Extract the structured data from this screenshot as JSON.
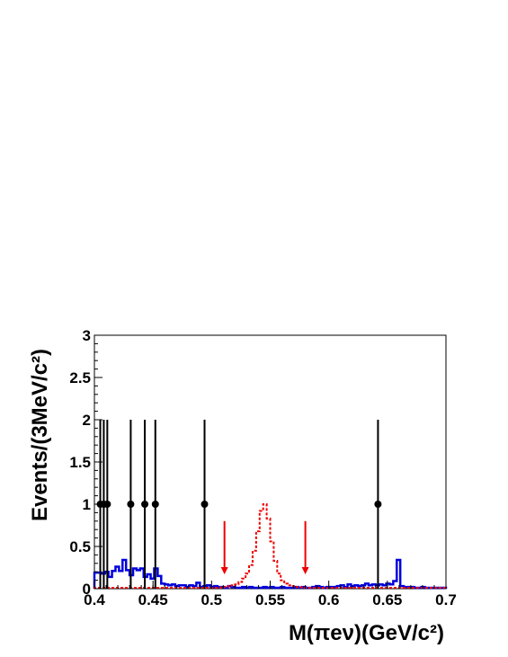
{
  "chart_data": {
    "type": "scatter",
    "title": "",
    "xlabel": "M(πeν)(GeV/c²)",
    "ylabel": "Events/(3MeV/c²)",
    "xlim": [
      0.4,
      0.7
    ],
    "ylim": [
      0,
      3
    ],
    "x_ticks": [
      "0.4",
      "0.45",
      "0.5",
      "0.55",
      "0.6",
      "0.65",
      "0.7"
    ],
    "y_ticks": [
      "0",
      "0.5",
      "1",
      "1.5",
      "2",
      "2.5",
      "3"
    ],
    "grid": false,
    "legend": "none",
    "series": [
      {
        "kind": "data-points",
        "color": "#000000",
        "x": [
          0.405,
          0.408,
          0.411,
          0.431,
          0.443,
          0.452,
          0.494,
          0.642
        ],
        "y": [
          1,
          1,
          1,
          1,
          1,
          1,
          1,
          1
        ],
        "err_low": [
          1,
          1,
          1,
          1,
          1,
          1,
          1,
          1
        ],
        "err_high": [
          1,
          1,
          1,
          1,
          1,
          1,
          1,
          1
        ]
      },
      {
        "kind": "histogram",
        "style": "solid",
        "color": "#0000dd",
        "bin_edges": [
          0.4,
          0.403,
          0.406,
          0.409,
          0.412,
          0.415,
          0.418,
          0.421,
          0.424,
          0.427,
          0.43,
          0.433,
          0.436,
          0.439,
          0.442,
          0.445,
          0.448,
          0.451,
          0.454,
          0.457,
          0.46,
          0.463,
          0.466,
          0.469,
          0.472,
          0.475,
          0.478,
          0.481,
          0.484,
          0.487,
          0.49,
          0.493,
          0.496,
          0.499,
          0.502,
          0.505,
          0.508,
          0.511,
          0.514,
          0.517,
          0.52,
          0.523,
          0.526,
          0.529,
          0.532,
          0.535,
          0.538,
          0.541,
          0.544,
          0.547,
          0.55,
          0.553,
          0.556,
          0.559,
          0.562,
          0.565,
          0.568,
          0.571,
          0.574,
          0.577,
          0.58,
          0.583,
          0.586,
          0.589,
          0.592,
          0.595,
          0.598,
          0.601,
          0.604,
          0.607,
          0.61,
          0.613,
          0.616,
          0.619,
          0.622,
          0.625,
          0.628,
          0.631,
          0.634,
          0.637,
          0.64,
          0.643,
          0.646,
          0.649,
          0.652,
          0.655,
          0.658,
          0.661,
          0.664,
          0.667,
          0.67,
          0.673,
          0.676,
          0.679,
          0.682,
          0.685,
          0.688,
          0.691,
          0.694,
          0.697,
          0.7
        ],
        "values": [
          0.19,
          0.19,
          0.18,
          0.2,
          0.14,
          0.21,
          0.26,
          0.21,
          0.34,
          0.22,
          0.16,
          0.24,
          0.22,
          0.24,
          0.14,
          0.17,
          0.12,
          0.24,
          0.15,
          0.06,
          0.05,
          0.04,
          0.05,
          0.03,
          0.04,
          0.04,
          0.02,
          0.04,
          0.03,
          0.07,
          0.02,
          0.03,
          0.04,
          0.02,
          0.03,
          0.02,
          0.02,
          0.01,
          0.03,
          0.02,
          0.01,
          0.01,
          0.02,
          0.01,
          0.02,
          0.01,
          0.01,
          0.01,
          0.02,
          0.01,
          0.02,
          0.01,
          0.01,
          0.02,
          0.01,
          0.01,
          0.01,
          0.02,
          0.01,
          0.02,
          0.01,
          0.01,
          0.02,
          0.03,
          0.02,
          0.01,
          0.02,
          0.02,
          0.02,
          0.03,
          0.04,
          0.02,
          0.05,
          0.03,
          0.04,
          0.03,
          0.04,
          0.06,
          0.04,
          0.05,
          0.04,
          0.05,
          0.04,
          0.06,
          0.05,
          0.09,
          0.34,
          0.03,
          0.02,
          0.02,
          0.02,
          0.01,
          0.01,
          0.02,
          0.01,
          0.01,
          0.01,
          0.01,
          0.01,
          0.01
        ]
      },
      {
        "kind": "histogram",
        "style": "dotted",
        "color": "#ee0000",
        "bin_edges": [
          0.4,
          0.403,
          0.406,
          0.409,
          0.412,
          0.415,
          0.418,
          0.421,
          0.424,
          0.427,
          0.43,
          0.433,
          0.436,
          0.439,
          0.442,
          0.445,
          0.448,
          0.451,
          0.454,
          0.457,
          0.46,
          0.463,
          0.466,
          0.469,
          0.472,
          0.475,
          0.478,
          0.481,
          0.484,
          0.487,
          0.49,
          0.493,
          0.496,
          0.499,
          0.502,
          0.505,
          0.508,
          0.511,
          0.514,
          0.517,
          0.52,
          0.523,
          0.526,
          0.529,
          0.532,
          0.535,
          0.538,
          0.541,
          0.544,
          0.547,
          0.55,
          0.553,
          0.556,
          0.559,
          0.562,
          0.565,
          0.568,
          0.571,
          0.574,
          0.577,
          0.58,
          0.583,
          0.586,
          0.589,
          0.592,
          0.595,
          0.598,
          0.601,
          0.604,
          0.607,
          0.61,
          0.613,
          0.616,
          0.619,
          0.622,
          0.625,
          0.628,
          0.631,
          0.634,
          0.637,
          0.64,
          0.643,
          0.646,
          0.649,
          0.652,
          0.655,
          0.658,
          0.661,
          0.664,
          0.667,
          0.67,
          0.673,
          0.676,
          0.679,
          0.682,
          0.685,
          0.688,
          0.691,
          0.694,
          0.697,
          0.7
        ],
        "values": [
          0.01,
          0.01,
          0.01,
          0.01,
          0.01,
          0.01,
          0.01,
          0.01,
          0.01,
          0.01,
          0.01,
          0.01,
          0.01,
          0.01,
          0.01,
          0.01,
          0.01,
          0.01,
          0.01,
          0.01,
          0.01,
          0.01,
          0.01,
          0.01,
          0.01,
          0.01,
          0.01,
          0.01,
          0.01,
          0.01,
          0.01,
          0.01,
          0.01,
          0.01,
          0.01,
          0.01,
          0.02,
          0.02,
          0.03,
          0.04,
          0.05,
          0.08,
          0.12,
          0.18,
          0.28,
          0.45,
          0.68,
          0.92,
          1.0,
          0.83,
          0.56,
          0.33,
          0.18,
          0.1,
          0.06,
          0.04,
          0.03,
          0.02,
          0.02,
          0.01,
          0.01,
          0.01,
          0.01,
          0.01,
          0.01,
          0.01,
          0.01,
          0.01,
          0.01,
          0.01,
          0.01,
          0.01,
          0.01,
          0.01,
          0.01,
          0.01,
          0.01,
          0.01,
          0.01,
          0.01,
          0.01,
          0.01,
          0.01,
          0.01,
          0.01,
          0.01,
          0.01,
          0.01,
          0.01,
          0.01,
          0.01,
          0.01,
          0.01,
          0.01,
          0.01,
          0.01,
          0.01,
          0.01,
          0.01,
          0.01
        ]
      }
    ],
    "annotations": [
      {
        "kind": "arrow-down",
        "color": "#ee0000",
        "x": 0.511,
        "y_top": 0.8,
        "y_bottom": 0.17
      },
      {
        "kind": "arrow-down",
        "color": "#ee0000",
        "x": 0.58,
        "y_top": 0.8,
        "y_bottom": 0.17
      }
    ]
  }
}
